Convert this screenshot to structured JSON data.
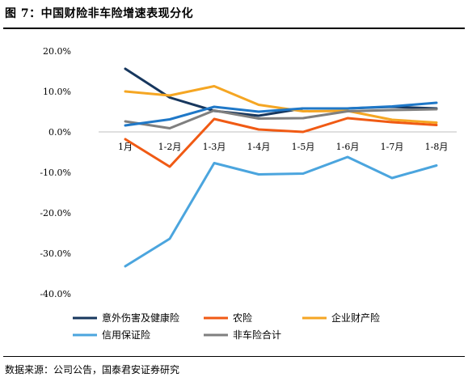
{
  "figure": {
    "title": "图 7：中国财险非车险增速表现分化",
    "source": "数据来源：公司公告，国泰君安证券研究"
  },
  "chart_data": {
    "type": "line",
    "title": "",
    "xlabel": "",
    "ylabel": "",
    "categories": [
      "1月",
      "1-2月",
      "1-3月",
      "1-4月",
      "1-5月",
      "1-6月",
      "1-7月",
      "1-8月"
    ],
    "y_ticks": [
      "20.0%",
      "10.0%",
      "0.0%",
      "-10.0%",
      "-20.0%",
      "-30.0%",
      "-40.0%"
    ],
    "ylim": [
      -40,
      20
    ],
    "grid": false,
    "legend_position": "bottom",
    "series": [
      {
        "name": "意外伤害及健康险",
        "color": "#17375e",
        "values": [
          15.6,
          8.5,
          5.2,
          4.0,
          5.8,
          5.8,
          6.2,
          5.8
        ]
      },
      {
        "name": "农险",
        "color": "#f05a14",
        "values": [
          -1.8,
          -8.6,
          3.2,
          0.6,
          0.0,
          3.4,
          2.4,
          1.7
        ]
      },
      {
        "name": "企业财产险",
        "color": "#f5a623",
        "values": [
          10.0,
          9.0,
          11.3,
          6.7,
          5.1,
          5.2,
          3.0,
          2.3
        ]
      },
      {
        "name": "信用保证险",
        "color": "#4ba5de",
        "values": [
          -33.2,
          -26.4,
          -7.7,
          -10.5,
          -10.3,
          -6.2,
          -11.4,
          -8.3
        ]
      },
      {
        "name": "非车险合计",
        "color": "#7f7f7f",
        "values": [
          2.6,
          0.9,
          5.3,
          3.3,
          3.4,
          5.1,
          5.4,
          5.6
        ]
      },
      {
        "name": "",
        "color": "#1f78c8",
        "values": [
          1.6,
          3.1,
          6.2,
          5.0,
          5.8,
          5.8,
          6.3,
          7.2
        ]
      }
    ]
  }
}
